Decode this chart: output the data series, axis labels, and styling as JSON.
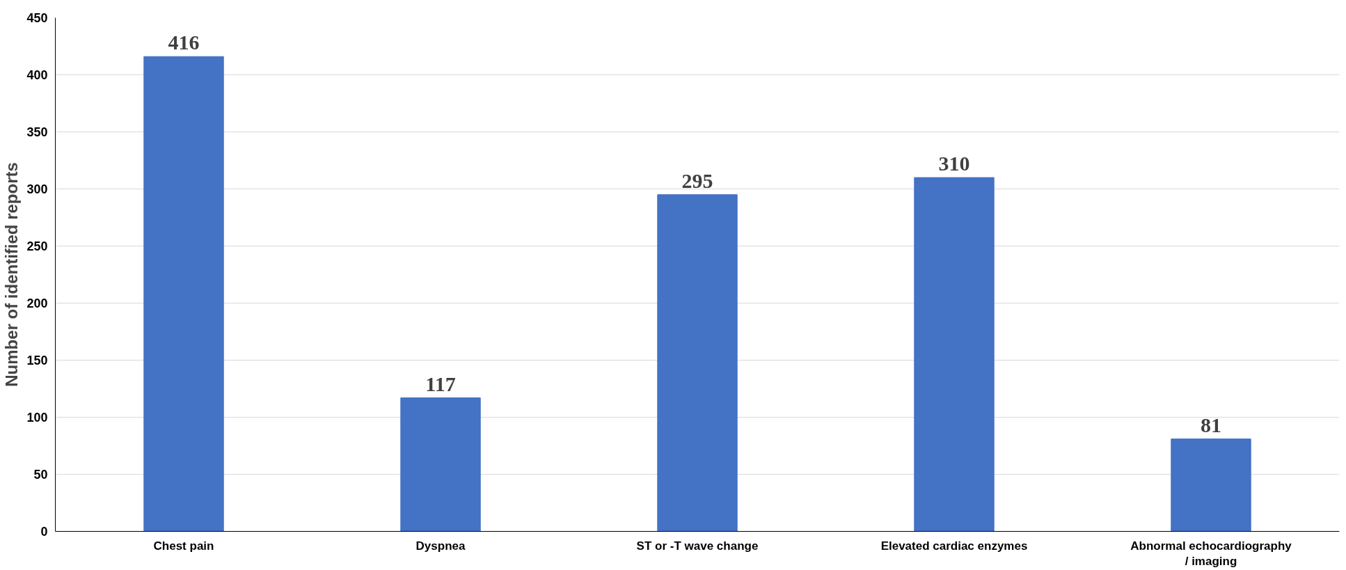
{
  "chart_data": {
    "type": "bar",
    "ylabel": "Number of identified reports",
    "categories": [
      "Chest pain",
      "Dyspnea",
      "ST or -T wave change",
      "Elevated cardiac enzymes",
      "Abnormal echocardiography\n/ imaging"
    ],
    "values": [
      416,
      117,
      295,
      310,
      81
    ],
    "color": "#4472c4",
    "ylim": [
      0,
      450
    ],
    "yticks": [
      0,
      50,
      100,
      150,
      200,
      250,
      300,
      350,
      400,
      450
    ],
    "grid": "y",
    "data_labels": true
  }
}
